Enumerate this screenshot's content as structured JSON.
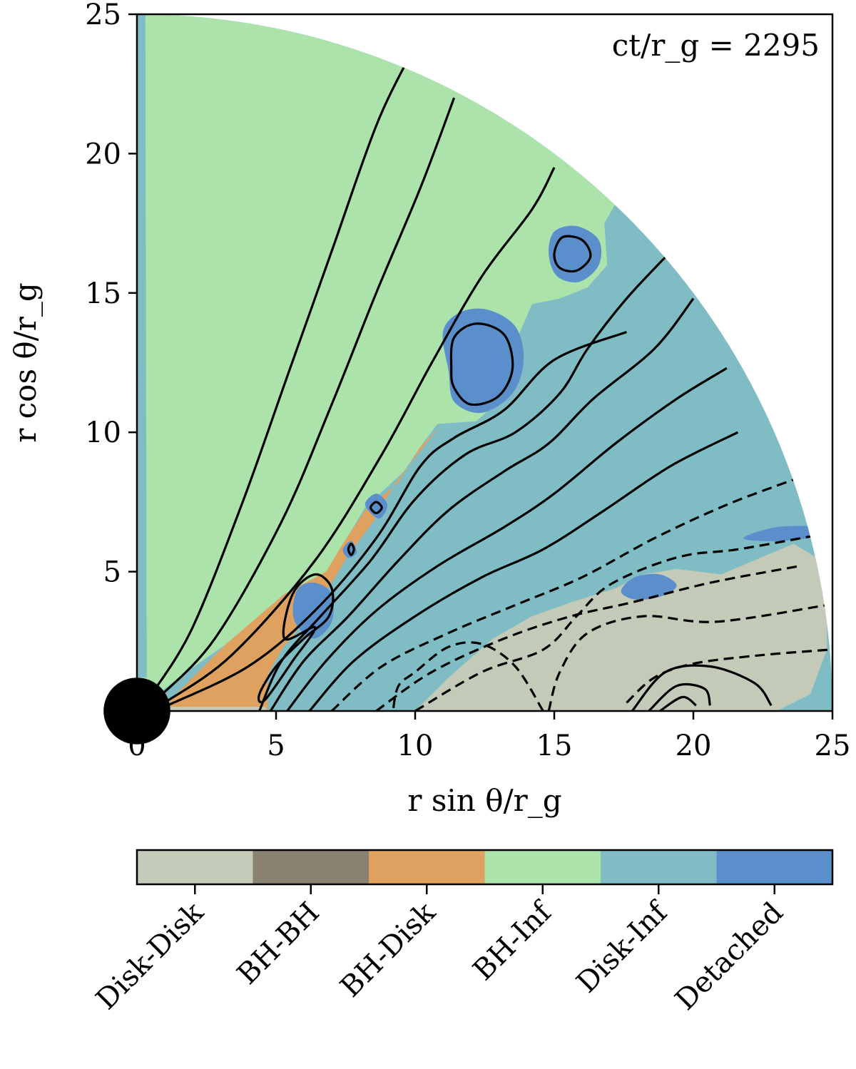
{
  "chart_data": {
    "type": "heatmap",
    "xlabel": "r sin θ/r_g",
    "ylabel": "r cos θ/r_g",
    "xlim": [
      0,
      25
    ],
    "ylim": [
      0,
      25
    ],
    "x_ticks": [
      "0",
      "5",
      "10",
      "15",
      "20",
      "25"
    ],
    "y_ticks": [
      "0",
      "5",
      "10",
      "15",
      "20",
      "25"
    ],
    "annotation": "ct/r_g = 2295",
    "colors": {
      "Disk-Disk": "#c4cab8",
      "BH-BH": "#8a8270",
      "BH-Disk": "#dea15f",
      "BH-Inf": "#abe3ab",
      "Disk-Inf": "#80bcc4",
      "Detached": "#5b8fcb"
    },
    "colorbar": {
      "categories": [
        "Disk-Disk",
        "BH-BH",
        "BH-Disk",
        "BH-Inf",
        "Disk-Inf",
        "Detached"
      ]
    },
    "domain": {
      "shape": "quarter-disk",
      "outer_radius": 25,
      "black_hole_radius": 1.2
    }
  }
}
